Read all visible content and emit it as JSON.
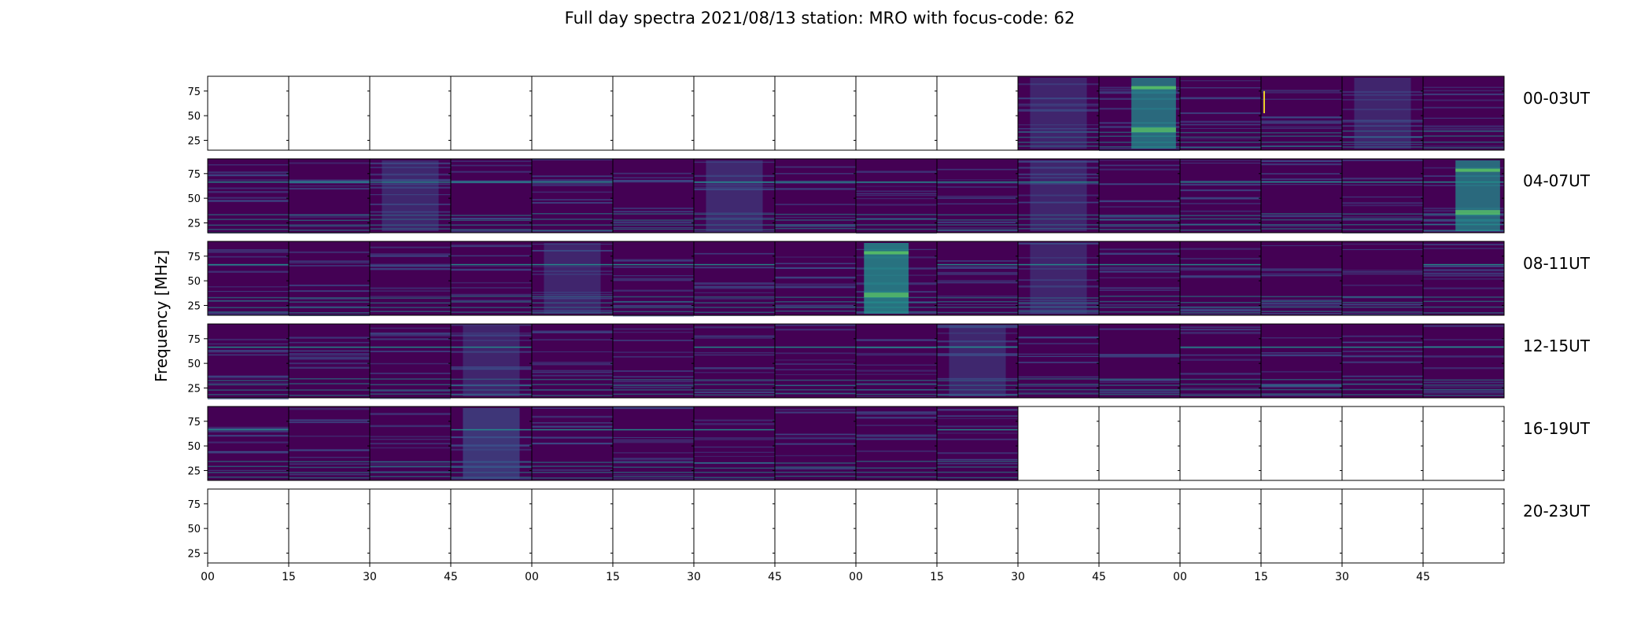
{
  "chart_data": {
    "type": "heatmap",
    "title": "Full day spectra 2021/08/13 station: MRO with focus-code: 62",
    "ylabel": "Frequency [MHz]",
    "xlabel": "",
    "y_ticks": [
      "25",
      "50",
      "75"
    ],
    "ylim": [
      15,
      90
    ],
    "x_ticks": [
      "00",
      "15",
      "30",
      "45",
      "00",
      "15",
      "30",
      "45",
      "00",
      "15",
      "30",
      "45",
      "00",
      "15",
      "30",
      "45"
    ],
    "panels_per_row": 16,
    "panel_minutes": 15,
    "colormap": "viridis",
    "colors": {
      "background": "#440154",
      "noise": "#3b528b",
      "mid": "#21918c",
      "high": "#5ec962",
      "peak": "#fde725"
    },
    "rows": [
      {
        "label": "00-03UT",
        "data_present": [
          0,
          0,
          0,
          0,
          0,
          0,
          0,
          0,
          0,
          0,
          1,
          1,
          1,
          1,
          1,
          1
        ],
        "intensity": [
          0,
          0,
          0,
          0,
          0,
          0,
          0,
          0,
          0,
          0,
          0.28,
          0.5,
          0.22,
          0.25,
          0.28,
          0.22
        ]
      },
      {
        "label": "04-07UT",
        "data_present": [
          1,
          1,
          1,
          1,
          1,
          1,
          1,
          1,
          1,
          1,
          1,
          1,
          1,
          1,
          1,
          1
        ],
        "intensity": [
          0.22,
          0.22,
          0.3,
          0.22,
          0.22,
          0.22,
          0.32,
          0.24,
          0.22,
          0.22,
          0.28,
          0.22,
          0.22,
          0.24,
          0.22,
          0.5
        ]
      },
      {
        "label": "08-11UT",
        "data_present": [
          1,
          1,
          1,
          1,
          1,
          1,
          1,
          1,
          1,
          1,
          1,
          1,
          1,
          1,
          1,
          1
        ],
        "intensity": [
          0.22,
          0.22,
          0.24,
          0.26,
          0.28,
          0.22,
          0.22,
          0.2,
          0.55,
          0.22,
          0.28,
          0.22,
          0.22,
          0.22,
          0.22,
          0.26
        ]
      },
      {
        "label": "12-15UT",
        "data_present": [
          1,
          1,
          1,
          1,
          1,
          1,
          1,
          1,
          1,
          1,
          1,
          1,
          1,
          1,
          1,
          1
        ],
        "intensity": [
          0.24,
          0.22,
          0.22,
          0.28,
          0.22,
          0.22,
          0.22,
          0.22,
          0.24,
          0.3,
          0.22,
          0.24,
          0.18,
          0.22,
          0.26,
          0.22
        ]
      },
      {
        "label": "16-19UT",
        "data_present": [
          1,
          1,
          1,
          1,
          1,
          1,
          1,
          1,
          1,
          1,
          0,
          0,
          0,
          0,
          0,
          0
        ],
        "intensity": [
          0.22,
          0.22,
          0.22,
          0.45,
          0.22,
          0.22,
          0.22,
          0.24,
          0.22,
          0.22,
          0,
          0,
          0,
          0,
          0,
          0
        ]
      },
      {
        "label": "20-23UT",
        "data_present": [
          0,
          0,
          0,
          0,
          0,
          0,
          0,
          0,
          0,
          0,
          0,
          0,
          0,
          0,
          0,
          0
        ],
        "intensity": [
          0,
          0,
          0,
          0,
          0,
          0,
          0,
          0,
          0,
          0,
          0,
          0,
          0,
          0,
          0,
          0
        ]
      }
    ]
  }
}
